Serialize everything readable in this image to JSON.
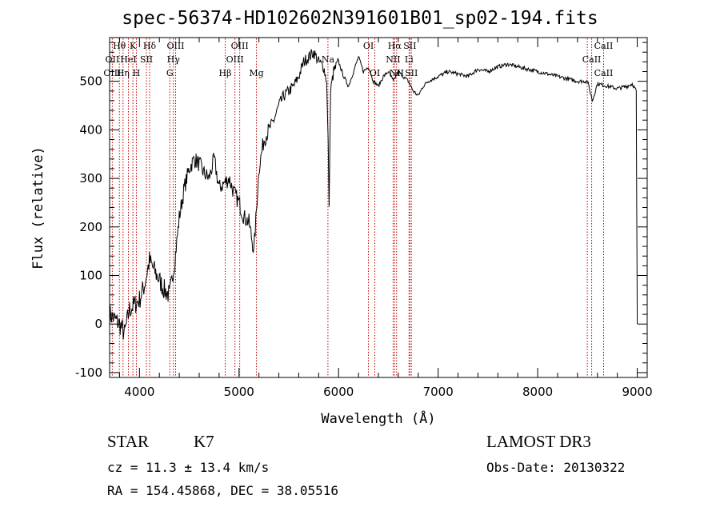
{
  "chart_data": {
    "type": "line",
    "title": "spec-56374-HD102602N391601B01_sp02-194.fits",
    "xlabel": "Wavelength (Å)",
    "ylabel": "Flux (relative)",
    "xlim": [
      3700,
      9100
    ],
    "ylim": [
      -110,
      590
    ],
    "xticks": [
      4000,
      5000,
      6000,
      7000,
      8000,
      9000
    ],
    "yticks": [
      -100,
      0,
      100,
      200,
      300,
      400,
      500
    ],
    "grid": false,
    "series": [
      {
        "color": "#000000",
        "x": [
          3700,
          3750,
          3800,
          3850,
          3900,
          3950,
          4000,
          4050,
          4100,
          4150,
          4200,
          4250,
          4300,
          4350,
          4400,
          4450,
          4500,
          4550,
          4600,
          4650,
          4700,
          4750,
          4800,
          4850,
          4900,
          4950,
          5000,
          5050,
          5100,
          5150,
          5200,
          5250,
          5300,
          5350,
          5400,
          5450,
          5500,
          5550,
          5600,
          5650,
          5700,
          5750,
          5800,
          5850,
          5880,
          5895,
          5905,
          5920,
          5950,
          6000,
          6050,
          6100,
          6150,
          6200,
          6250,
          6300,
          6350,
          6400,
          6450,
          6500,
          6550,
          6600,
          6650,
          6700,
          6750,
          6800,
          6850,
          6900,
          7000,
          7100,
          7200,
          7300,
          7400,
          7500,
          7600,
          7700,
          7800,
          7900,
          8000,
          8100,
          8200,
          8300,
          8400,
          8500,
          8550,
          8600,
          8700,
          8800,
          8900,
          8950,
          8990,
          9000
        ],
        "y": [
          20,
          10,
          0,
          -20,
          30,
          40,
          50,
          80,
          130,
          110,
          90,
          70,
          60,
          120,
          220,
          280,
          320,
          340,
          330,
          310,
          300,
          340,
          280,
          290,
          300,
          270,
          250,
          220,
          210,
          150,
          320,
          380,
          400,
          420,
          450,
          470,
          480,
          490,
          510,
          540,
          550,
          560,
          540,
          530,
          500,
          380,
          240,
          480,
          520,
          540,
          510,
          490,
          520,
          550,
          520,
          530,
          500,
          490,
          510,
          520,
          500,
          520,
          510,
          500,
          480,
          470,
          490,
          500,
          510,
          520,
          515,
          510,
          525,
          520,
          530,
          535,
          530,
          525,
          520,
          515,
          510,
          505,
          500,
          500,
          460,
          495,
          490,
          485,
          490,
          495,
          480,
          0
        ]
      }
    ],
    "line_annotations": [
      {
        "label": "Hθ",
        "wavelength": 3798,
        "row": 0
      },
      {
        "label": "OII",
        "wavelength": 3727,
        "row": 1
      },
      {
        "label": "OIII",
        "wavelength": 3727,
        "row": 2
      },
      {
        "label": "K",
        "wavelength": 3934,
        "row": 0
      },
      {
        "label": "HeI",
        "wavelength": 3889,
        "row": 1
      },
      {
        "label": "Hη",
        "wavelength": 3835,
        "row": 2
      },
      {
        "label": "Hδ",
        "wavelength": 4102,
        "row": 0
      },
      {
        "label": "SII",
        "wavelength": 4070,
        "row": 1
      },
      {
        "label": "H",
        "wavelength": 3969,
        "row": 2
      },
      {
        "label": "OIII",
        "wavelength": 4363,
        "row": 0
      },
      {
        "label": "Hγ",
        "wavelength": 4341,
        "row": 1
      },
      {
        "label": "G",
        "wavelength": 4305,
        "row": 2
      },
      {
        "label": "OIII",
        "wavelength": 5007,
        "row": 0
      },
      {
        "label": "OIII",
        "wavelength": 4959,
        "row": 1
      },
      {
        "label": "Hβ",
        "wavelength": 4861,
        "row": 2
      },
      {
        "label": "Mg",
        "wavelength": 5175,
        "row": 2
      },
      {
        "label": "Na",
        "wavelength": 5893,
        "row": 1
      },
      {
        "label": "OI",
        "wavelength": 6300,
        "row": 0
      },
      {
        "label": "OI",
        "wavelength": 6364,
        "row": 2
      },
      {
        "label": "Hα",
        "wavelength": 6563,
        "row": 0
      },
      {
        "label": "SII",
        "wavelength": 6716,
        "row": 0
      },
      {
        "label": "NII",
        "wavelength": 6548,
        "row": 1
      },
      {
        "label": "Li",
        "wavelength": 6708,
        "row": 1
      },
      {
        "label": "NII",
        "wavelength": 6583,
        "row": 2
      },
      {
        "label": "SII",
        "wavelength": 6731,
        "row": 2
      },
      {
        "label": "CaII",
        "wavelength": 8662,
        "row": 0
      },
      {
        "label": "CaII",
        "wavelength": 8542,
        "row": 1
      },
      {
        "label": "CaII",
        "wavelength": 8662,
        "row": 2
      }
    ],
    "line_marker_wavelengths": [
      3727,
      3798,
      3835,
      3889,
      3934,
      3969,
      4070,
      4102,
      4305,
      4341,
      4363,
      4861,
      4959,
      5007,
      5175,
      5893,
      6300,
      6364,
      6548,
      6563,
      6583,
      6708,
      6716,
      6731,
      8498,
      8542,
      8662
    ]
  },
  "info": {
    "star_label": "STAR",
    "subclass": "K7",
    "survey": "LAMOST DR3",
    "cz": "cz = 11.3 ± 13.4 km/s",
    "obs_date": "Obs-Date: 20130322",
    "radec": "RA = 154.45868, DEC =  38.05516"
  }
}
